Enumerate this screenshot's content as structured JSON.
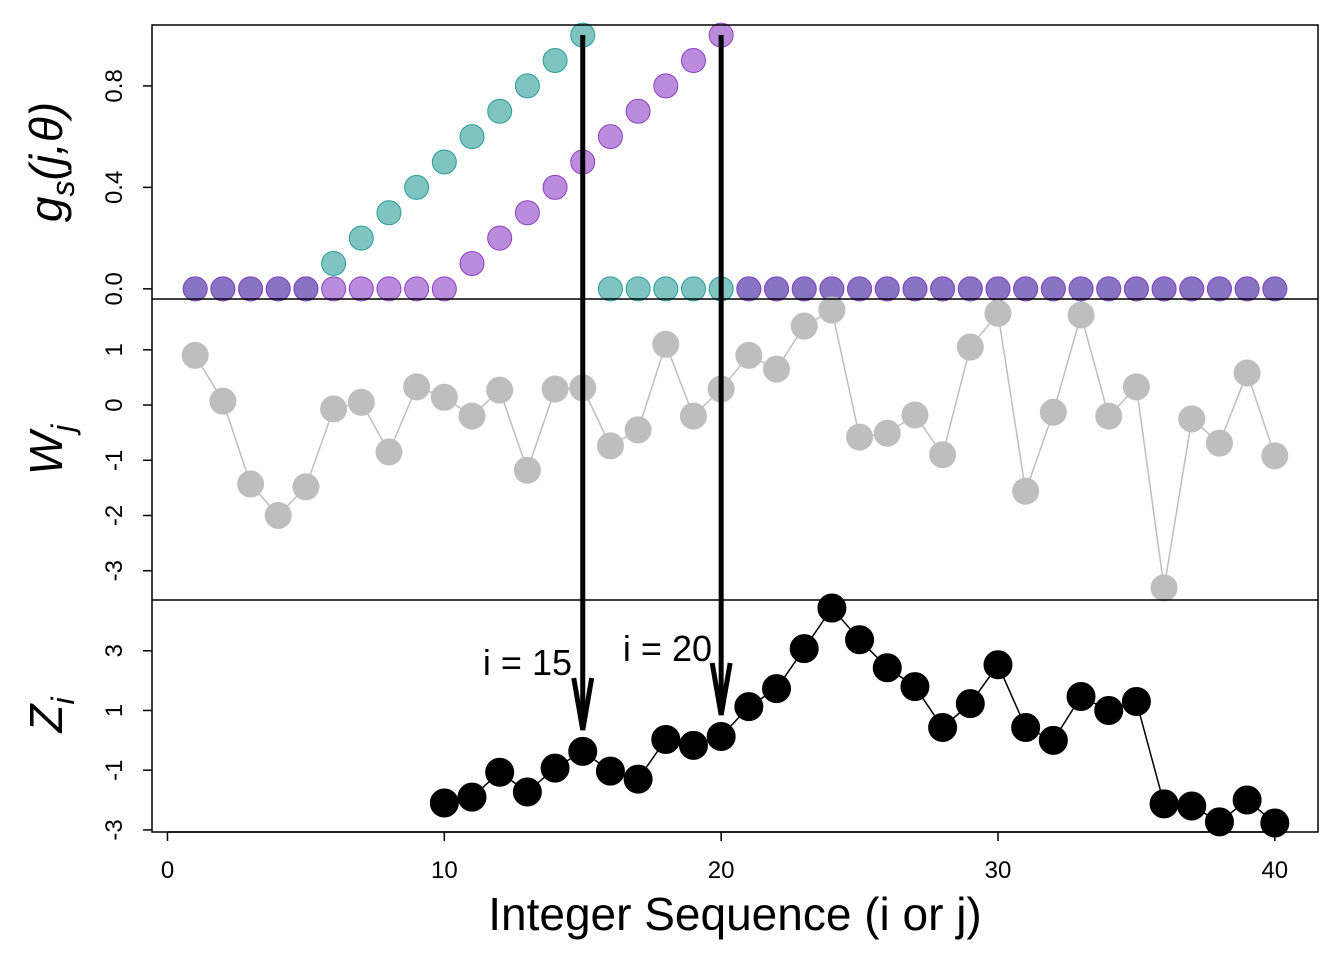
{
  "chart_data": [
    {
      "type": "scatter",
      "ylabel": "g",
      "ylabel_sub": "s",
      "ylabel_suffix": "(j,θ)",
      "x": [
        1,
        2,
        3,
        4,
        5,
        6,
        7,
        8,
        9,
        10,
        11,
        12,
        13,
        14,
        15,
        16,
        17,
        18,
        19,
        20,
        21,
        22,
        23,
        24,
        25,
        26,
        27,
        28,
        29,
        30,
        31,
        32,
        33,
        34,
        35,
        36,
        37,
        38,
        39,
        40
      ],
      "series": [
        {
          "color": "#2a9d98",
          "values": [
            0,
            0,
            0,
            0,
            0,
            0.1,
            0.2,
            0.3,
            0.4,
            0.5,
            0.6,
            0.7,
            0.8,
            0.9,
            1.0,
            0,
            0,
            0,
            0,
            0,
            0,
            0,
            0,
            0,
            0,
            0,
            0,
            0,
            0,
            0,
            0,
            0,
            0,
            0,
            0,
            0,
            0,
            0,
            0,
            0
          ]
        },
        {
          "color": "#8e3fc4",
          "values": [
            0,
            0,
            0,
            0,
            0,
            0,
            0,
            0,
            0,
            0,
            0.1,
            0.2,
            0.3,
            0.4,
            0.5,
            0.6,
            0.7,
            0.8,
            0.9,
            1.0,
            0,
            0,
            0,
            0,
            0,
            0,
            0,
            0,
            0,
            0,
            0,
            0,
            0,
            0,
            0,
            0,
            0,
            0,
            0,
            0
          ]
        }
      ],
      "xlim": [
        -0.56,
        41.56
      ],
      "ylim": [
        -0.04,
        1.04
      ],
      "yticks": [
        {
          "value": 0,
          "label": "0.0"
        },
        {
          "value": 0.4,
          "label": "0.4"
        },
        {
          "value": 0.8,
          "label": "0.8"
        }
      ]
    },
    {
      "type": "line",
      "ylabel": "W",
      "ylabel_sub": "j",
      "x": [
        1,
        2,
        3,
        4,
        5,
        6,
        7,
        8,
        9,
        10,
        11,
        12,
        13,
        14,
        15,
        16,
        17,
        18,
        19,
        20,
        21,
        22,
        23,
        24,
        25,
        26,
        27,
        28,
        29,
        30,
        31,
        32,
        33,
        34,
        35,
        36,
        37,
        38,
        39,
        40
      ],
      "series": [
        {
          "color": "#bebebe",
          "values": [
            0.9,
            0.07,
            -1.43,
            -2.0,
            -1.48,
            -0.07,
            0.05,
            -0.85,
            0.33,
            0.14,
            -0.2,
            0.27,
            -1.18,
            0.29,
            0.31,
            -0.74,
            -0.45,
            1.1,
            -0.2,
            0.29,
            0.9,
            0.65,
            1.43,
            1.72,
            -0.58,
            -0.51,
            -0.18,
            -0.9,
            1.05,
            1.66,
            -1.56,
            -0.13,
            1.63,
            -0.2,
            0.33,
            -3.31,
            -0.25,
            -0.69,
            0.58,
            -0.92
          ]
        }
      ],
      "xlim": [
        -0.56,
        41.56
      ],
      "ylim": [
        -3.53,
        1.92
      ],
      "yticks": [
        -3,
        -2,
        -1,
        0,
        1
      ]
    },
    {
      "type": "line",
      "ylabel": "Z",
      "ylabel_sub": "i",
      "xlabel": "Integer Sequence (i or j)",
      "x": [
        1,
        2,
        3,
        4,
        5,
        6,
        7,
        8,
        9,
        10,
        11,
        12,
        13,
        14,
        15,
        16,
        17,
        18,
        19,
        20,
        21,
        22,
        23,
        24,
        25,
        26,
        27,
        28,
        29,
        30,
        31,
        32,
        33,
        34,
        35,
        36,
        37,
        38,
        39,
        40
      ],
      "series": [
        {
          "color": "#000000",
          "values": [
            null,
            null,
            null,
            null,
            null,
            null,
            null,
            null,
            null,
            -2.1,
            -1.9,
            -1.07,
            -1.73,
            -0.93,
            -0.37,
            -1.03,
            -1.3,
            0.03,
            -0.17,
            0.13,
            1.13,
            1.73,
            3.07,
            4.43,
            3.37,
            2.43,
            1.8,
            0.43,
            1.23,
            2.53,
            0.43,
            0,
            1.47,
            1.0,
            1.3,
            -2.13,
            -2.2,
            -2.73,
            -2.0,
            -2.77
          ]
        }
      ],
      "xlim": [
        -0.56,
        41.56
      ],
      "ylim": [
        -3.07,
        4.7
      ],
      "xticks": [
        0,
        10,
        20,
        30,
        40
      ],
      "yticks": [
        -3,
        -1,
        1,
        3
      ],
      "annotations": [
        {
          "text": "i = 15",
          "x": 15
        },
        {
          "text": "i = 20",
          "x": 20
        }
      ]
    }
  ]
}
